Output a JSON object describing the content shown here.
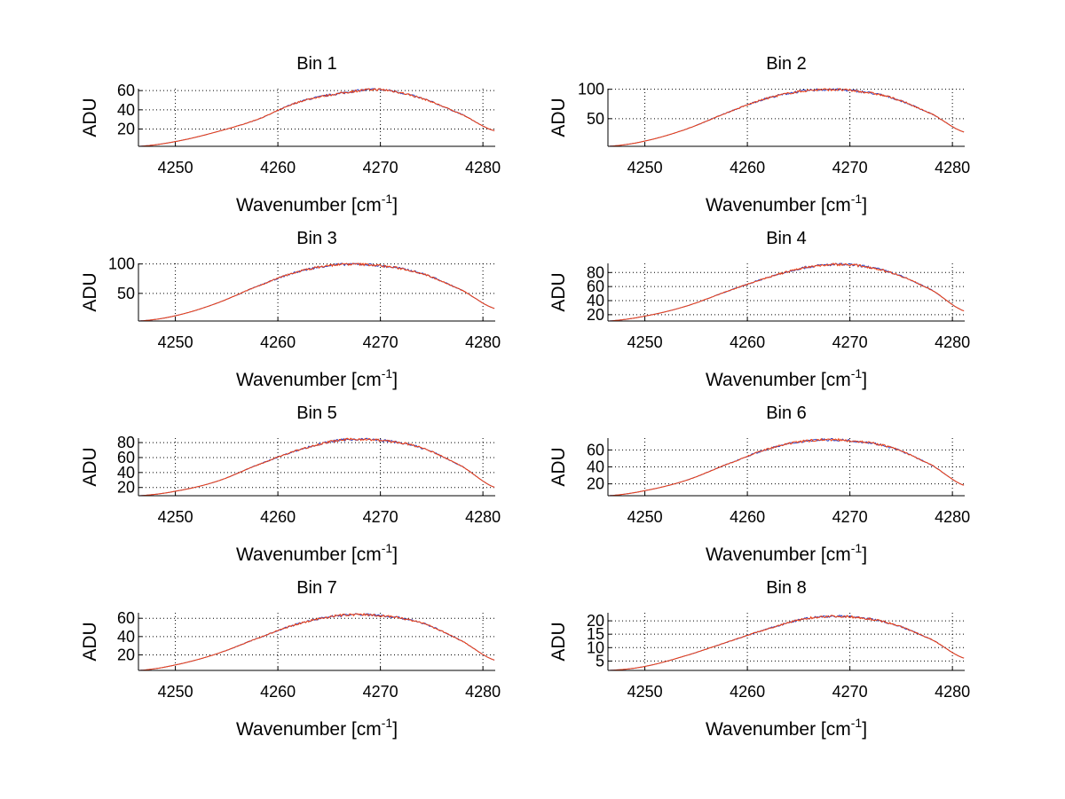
{
  "chart_data": [
    {
      "type": "line",
      "title": "Bin 1",
      "xlabel": "Wavenumber [cm",
      "xlabel_sup": "-1",
      "xlabel_end": "]",
      "ylabel": "ADU",
      "xlim": [
        4246.4,
        4281.2
      ],
      "ylim": [
        2,
        62
      ],
      "xticks": [
        4250,
        4260,
        4270,
        4280
      ],
      "yticks": [
        20,
        40,
        60
      ],
      "grid": true,
      "x": [
        4246.5,
        4250,
        4254,
        4258,
        4262,
        4266,
        4270,
        4274,
        4278,
        4281.2
      ],
      "y": [
        2,
        7,
        17,
        30,
        48,
        57,
        61,
        52,
        35,
        18
      ],
      "series_colors": [
        "#3040c0",
        "#f04010"
      ]
    },
    {
      "type": "line",
      "title": "Bin 2",
      "xlabel": "Wavenumber [cm",
      "xlabel_sup": "-1",
      "xlabel_end": "]",
      "ylabel": "ADU",
      "xlim": [
        4246.4,
        4281.2
      ],
      "ylim": [
        3,
        101
      ],
      "xticks": [
        4250,
        4260,
        4270,
        4280
      ],
      "yticks": [
        50,
        100
      ],
      "grid": true,
      "x": [
        4246.5,
        4250,
        4254,
        4258,
        4262,
        4266,
        4270,
        4274,
        4278,
        4281.2
      ],
      "y": [
        3,
        12,
        32,
        60,
        85,
        98,
        98,
        86,
        58,
        27
      ],
      "series_colors": [
        "#3040c0",
        "#f04010"
      ]
    },
    {
      "type": "line",
      "title": "Bin 3",
      "xlabel": "Wavenumber [cm",
      "xlabel_sup": "-1",
      "xlabel_end": "]",
      "ylabel": "ADU",
      "xlim": [
        4246.4,
        4281.2
      ],
      "ylim": [
        3,
        101
      ],
      "xticks": [
        4250,
        4260,
        4270,
        4280
      ],
      "yticks": [
        50,
        100
      ],
      "grid": true,
      "x": [
        4246.5,
        4250,
        4254,
        4258,
        4262,
        4266,
        4270,
        4274,
        4278,
        4281.2
      ],
      "y": [
        3,
        12,
        33,
        62,
        87,
        99,
        97,
        84,
        55,
        24
      ],
      "series_colors": [
        "#3040c0",
        "#f04010"
      ]
    },
    {
      "type": "line",
      "title": "Bin 4",
      "xlabel": "Wavenumber [cm",
      "xlabel_sup": "-1",
      "xlabel_end": "]",
      "ylabel": "ADU",
      "xlim": [
        4246.4,
        4281.2
      ],
      "ylim": [
        11,
        93
      ],
      "xticks": [
        4250,
        4260,
        4270,
        4280
      ],
      "yticks": [
        20,
        40,
        60,
        80
      ],
      "grid": true,
      "x": [
        4246.5,
        4250,
        4254,
        4258,
        4262,
        4266,
        4270,
        4274,
        4278,
        4281.2
      ],
      "y": [
        11,
        18,
        32,
        53,
        73,
        88,
        91,
        80,
        55,
        25
      ],
      "series_colors": [
        "#3040c0",
        "#f04010"
      ]
    },
    {
      "type": "line",
      "title": "Bin 5",
      "xlabel": "Wavenumber [cm",
      "xlabel_sup": "-1",
      "xlabel_end": "]",
      "ylabel": "ADU",
      "xlim": [
        4246.4,
        4281.2
      ],
      "ylim": [
        9,
        86
      ],
      "xticks": [
        4250,
        4260,
        4270,
        4280
      ],
      "yticks": [
        20,
        40,
        60,
        80
      ],
      "grid": true,
      "x": [
        4246.5,
        4250,
        4254,
        4258,
        4262,
        4266,
        4270,
        4274,
        4278,
        4281.2
      ],
      "y": [
        9,
        15,
        28,
        50,
        70,
        83,
        83,
        73,
        48,
        20
      ],
      "series_colors": [
        "#3040c0",
        "#f04010"
      ]
    },
    {
      "type": "line",
      "title": "Bin 6",
      "xlabel": "Wavenumber [cm",
      "xlabel_sup": "-1",
      "xlabel_end": "]",
      "ylabel": "ADU",
      "xlim": [
        4246.4,
        4281.2
      ],
      "ylim": [
        6,
        74
      ],
      "xticks": [
        4250,
        4260,
        4270,
        4280
      ],
      "yticks": [
        20,
        40,
        60
      ],
      "grid": true,
      "x": [
        4246.5,
        4250,
        4254,
        4258,
        4262,
        4266,
        4270,
        4274,
        4278,
        4281.2
      ],
      "y": [
        6,
        12,
        24,
        43,
        61,
        71,
        71,
        63,
        42,
        18
      ],
      "series_colors": [
        "#3040c0",
        "#f04010"
      ]
    },
    {
      "type": "line",
      "title": "Bin 7",
      "xlabel": "Wavenumber [cm",
      "xlabel_sup": "-1",
      "xlabel_end": "]",
      "ylabel": "ADU",
      "xlim": [
        4246.4,
        4281.2
      ],
      "ylim": [
        3,
        66
      ],
      "xticks": [
        4250,
        4260,
        4270,
        4280
      ],
      "yticks": [
        20,
        40,
        60
      ],
      "grid": true,
      "x": [
        4246.5,
        4250,
        4254,
        4258,
        4262,
        4266,
        4270,
        4274,
        4278,
        4281.2
      ],
      "y": [
        3,
        9,
        21,
        38,
        54,
        63,
        63,
        55,
        35,
        14
      ],
      "series_colors": [
        "#3040c0",
        "#f04010"
      ]
    },
    {
      "type": "line",
      "title": "Bin 8",
      "xlabel": "Wavenumber [cm",
      "xlabel_sup": "-1",
      "xlabel_end": "]",
      "ylabel": "ADU",
      "xlim": [
        4246.4,
        4281.2
      ],
      "ylim": [
        1.5,
        23
      ],
      "xticks": [
        4250,
        4260,
        4270,
        4280
      ],
      "yticks": [
        5,
        10,
        15,
        20
      ],
      "grid": true,
      "x": [
        4246.5,
        4250,
        4254,
        4258,
        4262,
        4266,
        4270,
        4274,
        4278,
        4281.2
      ],
      "y": [
        1.5,
        3,
        7,
        12,
        17,
        21,
        21.5,
        19,
        13,
        6
      ],
      "series_colors": [
        "#3040c0",
        "#f04010"
      ]
    }
  ]
}
